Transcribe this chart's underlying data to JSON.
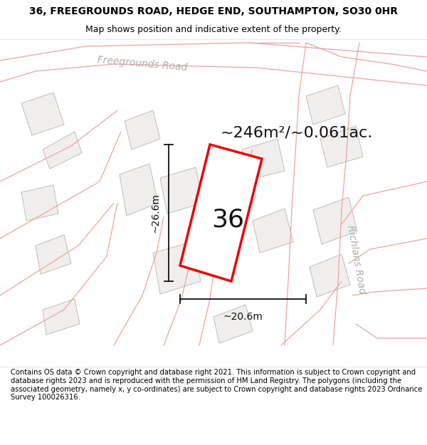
{
  "title": "36, FREEGROUNDS ROAD, HEDGE END, SOUTHAMPTON, SO30 0HR",
  "subtitle": "Map shows position and indicative extent of the property.",
  "footer": "Contains OS data © Crown copyright and database right 2021. This information is subject to Crown copyright and database rights 2023 and is reproduced with the permission of HM Land Registry. The polygons (including the associated geometry, namely x, y co-ordinates) are subject to Crown copyright and database rights 2023 Ordnance Survey 100026316.",
  "area_text": "~246m²/~0.061ac.",
  "width_text": "~20.6m",
  "height_text": "~26.6m",
  "property_number": "36",
  "map_bg": "#ffffff",
  "building_fill": "#f0efed",
  "building_edge": "#c0bdb8",
  "road_line_color": "#f5a0a0",
  "plot_outline_color": "#ee0000",
  "road_label_color": "#b0aeaa",
  "dim_line_color": "#111111",
  "text_color": "#111111",
  "footer_fontsize": 7.2,
  "title_fontsize": 10,
  "subtitle_fontsize": 9,
  "area_fontsize": 16,
  "dim_fontsize": 10,
  "num_fontsize": 26,
  "road_label_fontsize": 10
}
